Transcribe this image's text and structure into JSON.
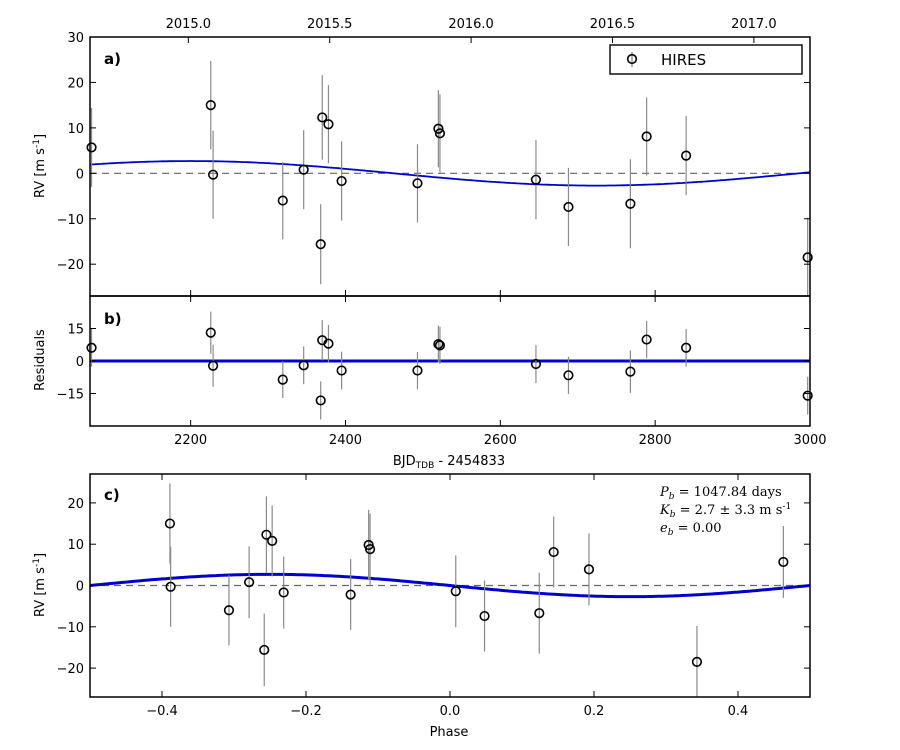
{
  "chart_data": [
    {
      "id": "a",
      "type": "scatter",
      "panel_label": "a)",
      "ylabel": "RV [m s",
      "ylabel_sup": "-1",
      "ylabel_tail": "]",
      "xlim": [
        2070,
        3000
      ],
      "ylim": [
        -27,
        30
      ],
      "yticks": [
        30,
        20,
        10,
        0,
        -10,
        -20
      ],
      "top_axis": {
        "ticks": [
          2015.0,
          2015.5,
          2016.0,
          2016.5,
          2017.0
        ],
        "labels": [
          "2015.0",
          "2015.5",
          "2016.0",
          "2016.5",
          "2017.0"
        ]
      },
      "legend": {
        "label": "HIRES",
        "position": "top-right"
      },
      "model": {
        "name": "Keplerian fit",
        "period": 1047.84,
        "K": 2.7,
        "phase_ref_time": 2462,
        "color": "#0000cc"
      },
      "series": [
        {
          "name": "HIRES",
          "x": [
            2072,
            2226,
            2229,
            2319,
            2346,
            2368,
            2370,
            2378,
            2395,
            2493,
            2520,
            2522,
            2646,
            2688,
            2768,
            2789,
            2840,
            2997
          ],
          "y": [
            5.7,
            15.0,
            -0.3,
            -6.0,
            0.8,
            -15.6,
            12.3,
            10.8,
            -1.7,
            -2.2,
            9.8,
            8.8,
            -1.4,
            -7.4,
            -6.7,
            8.1,
            3.9,
            -18.5
          ],
          "err": [
            8.7,
            9.7,
            9.7,
            8.5,
            8.7,
            8.8,
            9.3,
            8.6,
            8.7,
            8.6,
            8.5,
            8.6,
            8.7,
            8.6,
            9.8,
            8.6,
            8.7,
            8.7
          ]
        }
      ]
    },
    {
      "id": "b",
      "type": "scatter",
      "panel_label": "b)",
      "ylabel": "Residuals",
      "xlabel": "BJD",
      "xlabel_sub": "TDB",
      "xlabel_tail": " - 2454833",
      "xlim": [
        2070,
        3000
      ],
      "ylim": [
        -30,
        30
      ],
      "yticks": [
        15,
        0,
        -15
      ],
      "xticks": [
        2200,
        2400,
        2600,
        2800,
        3000
      ],
      "series": [
        {
          "name": "HIRES",
          "x": [
            2072,
            2226,
            2229,
            2319,
            2346,
            2368,
            2370,
            2378,
            2395,
            2493,
            2520,
            2522,
            2646,
            2688,
            2768,
            2789,
            2840,
            2997
          ],
          "y": [
            6.1,
            13.1,
            -2.2,
            -8.6,
            -2.0,
            -18.2,
            9.6,
            8.0,
            -4.4,
            -4.4,
            7.8,
            7.2,
            -1.4,
            -6.6,
            -4.9,
            9.9,
            6.1,
            -16.0
          ],
          "err": [
            8.7,
            9.7,
            9.7,
            8.5,
            8.7,
            8.8,
            9.3,
            8.6,
            8.7,
            8.6,
            8.5,
            8.6,
            8.7,
            8.6,
            9.8,
            8.6,
            8.7,
            8.7
          ]
        }
      ]
    },
    {
      "id": "c",
      "type": "scatter",
      "panel_label": "c)",
      "ylabel": "RV [m s",
      "ylabel_sup": "-1",
      "ylabel_tail": "]",
      "xlabel": "Phase",
      "xlim": [
        -0.5,
        0.5
      ],
      "ylim": [
        -27,
        27
      ],
      "yticks": [
        20,
        10,
        0,
        -10,
        -20
      ],
      "xticks": [
        -0.4,
        -0.2,
        0.0,
        0.2,
        0.4
      ],
      "xticklabels": [
        "−0.4",
        "−0.2",
        "0.0",
        "0.2",
        "0.4"
      ],
      "annotation": {
        "P": {
          "sym": "P",
          "sub": "b",
          "text": " = 1047.84 days"
        },
        "K": {
          "sym": "K",
          "sub": "b",
          "text": " = 2.7 ± 3.3 m s",
          "sup": "-1"
        },
        "e": {
          "sym": "e",
          "sub": "b",
          "text": " = 0.00"
        }
      },
      "model": {
        "amplitude": 2.7,
        "color": "#0000cc"
      },
      "series": [
        {
          "name": "HIRES",
          "x": [
            -0.389,
            -0.388,
            -0.307,
            -0.279,
            -0.258,
            -0.255,
            -0.247,
            -0.231,
            -0.138,
            -0.113,
            -0.111,
            0.008,
            0.048,
            0.124,
            0.144,
            0.193,
            0.343,
            0.463
          ],
          "y": [
            15.0,
            -0.3,
            -6.0,
            0.8,
            -15.6,
            12.3,
            10.8,
            -1.7,
            -2.2,
            9.8,
            8.8,
            -1.4,
            -7.4,
            -6.7,
            8.1,
            3.9,
            -18.5,
            5.7
          ],
          "err": [
            9.7,
            9.7,
            8.5,
            8.7,
            8.8,
            9.3,
            8.6,
            8.7,
            8.6,
            8.5,
            8.6,
            8.7,
            8.6,
            9.8,
            8.6,
            8.7,
            8.7,
            8.7
          ]
        }
      ]
    }
  ]
}
